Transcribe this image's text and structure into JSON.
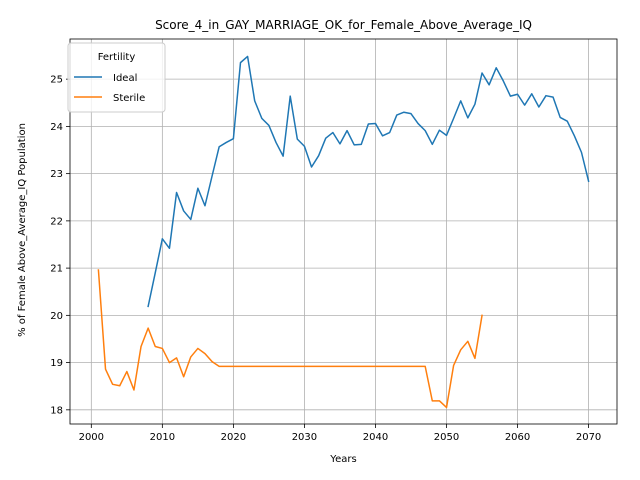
{
  "chart_data": {
    "type": "line",
    "title": "Score_4_in_GAY_MARRIAGE_OK_for_Female_Above_Average_IQ",
    "xlabel": "Years",
    "ylabel": "% of Female Above_Average_IQ Population",
    "xlim": [
      1997,
      2074
    ],
    "ylim": [
      17.7,
      25.85
    ],
    "xticks": [
      2000,
      2010,
      2020,
      2030,
      2040,
      2050,
      2060,
      2070
    ],
    "yticks": [
      18,
      19,
      20,
      21,
      22,
      23,
      24,
      25
    ],
    "grid": true,
    "legend": {
      "title": "Fertility",
      "placement": "upper-left"
    },
    "series": [
      {
        "name": "Ideal",
        "color": "#1f77b4",
        "x": [
          2008,
          2009,
          2010,
          2011,
          2012,
          2013,
          2014,
          2015,
          2016,
          2017,
          2018,
          2019,
          2020,
          2021,
          2022,
          2023,
          2024,
          2025,
          2026,
          2027,
          2028,
          2029,
          2030,
          2031,
          2032,
          2033,
          2034,
          2035,
          2036,
          2037,
          2038,
          2039,
          2040,
          2041,
          2042,
          2043,
          2044,
          2045,
          2046,
          2047,
          2048,
          2049,
          2050,
          2051,
          2052,
          2053,
          2054,
          2055,
          2056,
          2057,
          2058,
          2059,
          2060,
          2061,
          2062,
          2063,
          2064,
          2065,
          2066,
          2067,
          2068,
          2069,
          2070
        ],
        "y": [
          20.19,
          20.9,
          21.62,
          21.42,
          22.6,
          22.21,
          22.03,
          22.69,
          22.32,
          22.95,
          23.57,
          23.66,
          23.74,
          25.35,
          25.48,
          24.54,
          24.17,
          24.02,
          23.66,
          23.37,
          24.64,
          23.73,
          23.58,
          23.14,
          23.38,
          23.75,
          23.87,
          23.63,
          23.91,
          23.61,
          23.62,
          24.05,
          24.06,
          23.8,
          23.87,
          24.24,
          24.3,
          24.27,
          24.06,
          23.91,
          23.62,
          23.92,
          23.81,
          24.17,
          24.54,
          24.18,
          24.47,
          25.13,
          24.88,
          25.24,
          24.96,
          24.64,
          24.68,
          24.45,
          24.69,
          24.41,
          24.65,
          24.62,
          24.19,
          24.11,
          23.8,
          23.45,
          22.84
        ]
      },
      {
        "name": "Sterile",
        "color": "#ff7f0e",
        "x": [
          2001,
          2002,
          2003,
          2004,
          2005,
          2006,
          2007,
          2008,
          2009,
          2010,
          2011,
          2012,
          2013,
          2014,
          2015,
          2016,
          2017,
          2018,
          2019,
          2020,
          2021,
          2022,
          2023,
          2024,
          2025,
          2026,
          2027,
          2028,
          2029,
          2030,
          2031,
          2032,
          2033,
          2034,
          2035,
          2036,
          2037,
          2038,
          2039,
          2040,
          2041,
          2042,
          2043,
          2044,
          2045,
          2046,
          2047,
          2048,
          2049,
          2050,
          2051,
          2052,
          2053,
          2054,
          2055
        ],
        "y": [
          20.96,
          18.86,
          18.54,
          18.51,
          18.81,
          18.42,
          19.34,
          19.73,
          19.34,
          19.3,
          19.0,
          19.1,
          18.7,
          19.12,
          19.3,
          19.19,
          19.02,
          18.92,
          18.92,
          18.92,
          18.92,
          18.92,
          18.92,
          18.92,
          18.92,
          18.92,
          18.92,
          18.92,
          18.92,
          18.92,
          18.92,
          18.92,
          18.92,
          18.92,
          18.92,
          18.92,
          18.92,
          18.92,
          18.92,
          18.92,
          18.92,
          18.92,
          18.92,
          18.92,
          18.92,
          18.92,
          18.92,
          18.19,
          18.19,
          18.05,
          18.94,
          19.27,
          19.45,
          19.09,
          20.0
        ]
      }
    ]
  }
}
